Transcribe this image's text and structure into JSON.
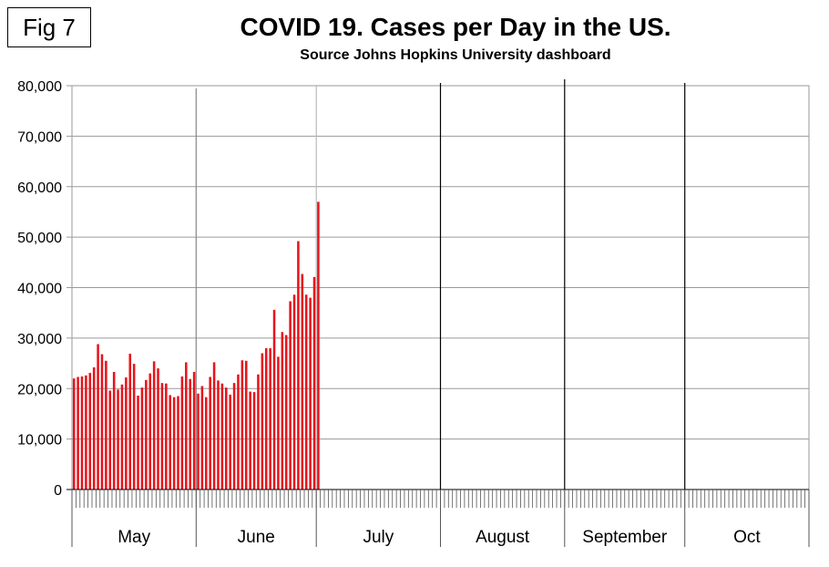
{
  "figure_label": "Fig 7",
  "chart_data": {
    "type": "bar",
    "title": "COVID 19. Cases per Day in the US.",
    "subtitle": "Source Johns Hopkins University dashboard",
    "xlabel": "",
    "ylabel": "",
    "ylim": [
      0,
      80000
    ],
    "yticks": [
      0,
      10000,
      20000,
      30000,
      40000,
      50000,
      60000,
      70000,
      80000
    ],
    "ytick_labels": [
      "0",
      "10,000",
      "20,000",
      "30,000",
      "40,000",
      "50,000",
      "60,000",
      "70,000",
      "80,000"
    ],
    "months": [
      "May",
      "June",
      "July",
      "August",
      "September",
      "Oct"
    ],
    "month_lengths": [
      31,
      30,
      31,
      31,
      30,
      31
    ],
    "bar_color": "#e8141c",
    "values": [
      22000,
      22300,
      22400,
      22600,
      23100,
      24200,
      28800,
      26800,
      25500,
      19600,
      23300,
      19800,
      20800,
      22200,
      26900,
      24900,
      18600,
      20200,
      21700,
      23000,
      25400,
      24000,
      21100,
      21000,
      18700,
      18300,
      18500,
      22400,
      25200,
      21900,
      23300,
      19000,
      20500,
      18300,
      22300,
      25200,
      21600,
      21000,
      20200,
      18800,
      21100,
      22800,
      25600,
      25500,
      19400,
      19300,
      22800,
      27000,
      28000,
      28000,
      35600,
      26300,
      31200,
      30600,
      37300,
      38600,
      49200,
      42700,
      38600,
      38000,
      42100,
      57000
    ]
  }
}
